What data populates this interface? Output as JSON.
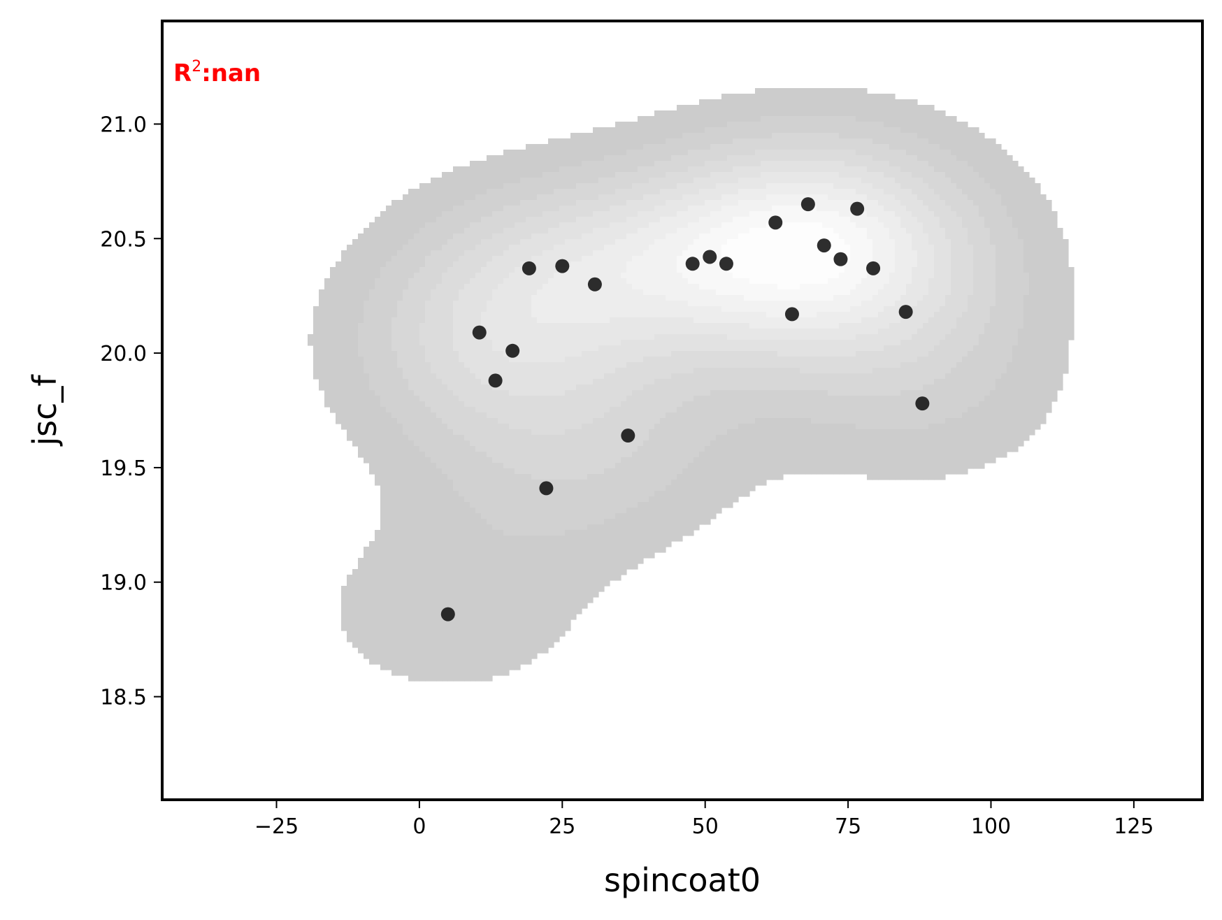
{
  "chart_data": {
    "type": "scatter",
    "title": "",
    "xlabel": "spincoat0",
    "ylabel": "jsc_f",
    "annotation": {
      "prefix": "R",
      "superscript": "2",
      "suffix": ":nan",
      "color": "#ff0000"
    },
    "xlim": [
      -45,
      137
    ],
    "ylim": [
      18.05,
      21.45
    ],
    "xticks": [
      -25,
      0,
      25,
      50,
      75,
      100,
      125
    ],
    "xtick_labels": [
      "−25",
      "0",
      "25",
      "50",
      "75",
      "100",
      "125"
    ],
    "yticks": [
      18.5,
      19.0,
      19.5,
      20.0,
      20.5,
      21.0
    ],
    "ytick_labels": [
      "18.5",
      "19.0",
      "19.5",
      "20.0",
      "20.5",
      "21.0"
    ],
    "grid": false,
    "density_contours": true,
    "colors": {
      "points": "#111111",
      "density_base": "#cccccc",
      "density_peak": "#fdfdfd",
      "axes": "#000000"
    },
    "points": [
      {
        "x": 5,
        "y": 18.86
      },
      {
        "x": 10.5,
        "y": 20.09
      },
      {
        "x": 13.3,
        "y": 19.88
      },
      {
        "x": 16.3,
        "y": 20.01
      },
      {
        "x": 19.2,
        "y": 20.37
      },
      {
        "x": 22.2,
        "y": 19.41
      },
      {
        "x": 25,
        "y": 20.38
      },
      {
        "x": 30.7,
        "y": 20.3
      },
      {
        "x": 36.5,
        "y": 19.64
      },
      {
        "x": 47.8,
        "y": 20.39
      },
      {
        "x": 50.8,
        "y": 20.42
      },
      {
        "x": 53.7,
        "y": 20.39
      },
      {
        "x": 62.3,
        "y": 20.57
      },
      {
        "x": 65.2,
        "y": 20.17
      },
      {
        "x": 68,
        "y": 20.65
      },
      {
        "x": 70.8,
        "y": 20.47
      },
      {
        "x": 73.7,
        "y": 20.41
      },
      {
        "x": 76.6,
        "y": 20.63
      },
      {
        "x": 79.4,
        "y": 20.37
      },
      {
        "x": 85.1,
        "y": 20.18
      },
      {
        "x": 88,
        "y": 19.78
      }
    ]
  }
}
